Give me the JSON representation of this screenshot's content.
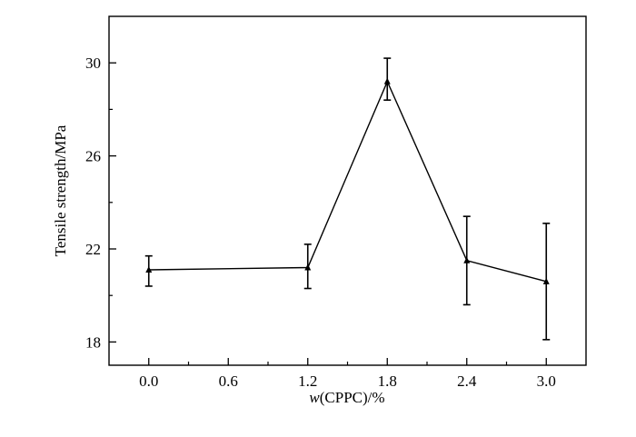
{
  "chart_data": {
    "type": "line",
    "xlabel_italic": "w",
    "xlabel_rest": "(CPPC)/%",
    "ylabel": "Tensile strength/MPa",
    "xlim": [
      -0.3,
      3.3
    ],
    "ylim": [
      17,
      32
    ],
    "x_ticks": [
      "0.0",
      "0.6",
      "1.2",
      "1.8",
      "2.4",
      "3.0"
    ],
    "y_ticks": [
      "18",
      "22",
      "26",
      "30"
    ],
    "grid": false,
    "series": [
      {
        "x": [
          0.0,
          1.2,
          1.8,
          2.4,
          3.0
        ],
        "y": [
          21.1,
          21.2,
          29.2,
          21.5,
          20.6
        ],
        "err_low": [
          20.4,
          20.3,
          28.4,
          19.6,
          18.1
        ],
        "err_high": [
          21.7,
          22.2,
          30.2,
          23.4,
          23.1
        ]
      }
    ],
    "colors": {
      "line": "#000000"
    }
  }
}
